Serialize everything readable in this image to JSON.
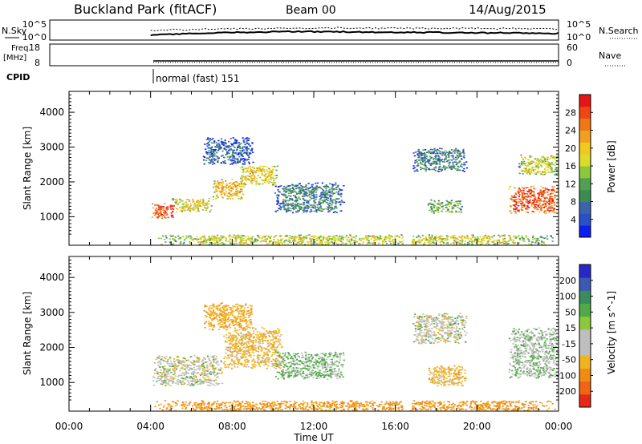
{
  "header": {
    "station": "Buckland Park (fitACF)",
    "beam": "Beam 00",
    "date": "14/Aug/2015"
  },
  "strip": {
    "nsky_label": "N.Sky",
    "nsearch_label": "N.Search",
    "noise_ticks": [
      "10^5",
      "10^0"
    ],
    "freq_label_1": "Freq.",
    "freq_label_2": "[MHz]",
    "freq_ticks": [
      "18",
      "8"
    ],
    "nave_label": "Nave",
    "nave_ticks": [
      "60",
      "0"
    ],
    "cpid_label": "CPID",
    "cpid_value": "normal (fast) 151"
  },
  "time_axis": {
    "label": "Time UT",
    "ticks": [
      "00:00",
      "04:00",
      "08:00",
      "12:00",
      "16:00",
      "20:00",
      "00:00"
    ]
  },
  "colors": {
    "power": [
      "#0a1ef0",
      "#2850c8",
      "#3c64aa",
      "#3c8c50",
      "#50a050",
      "#8cc83c",
      "#dcdc28",
      "#f0c81e",
      "#f0a01e",
      "#f07814",
      "#f04614",
      "#e61414"
    ],
    "velocity": [
      "#2828c8",
      "#3c5ab4",
      "#3c8c5a",
      "#50aa46",
      "#8cc83c",
      "#bebebe",
      "#bebebe",
      "#f0b41e",
      "#f08c14",
      "#f06414",
      "#e62814"
    ]
  },
  "chart_data": [
    {
      "type": "heatmap",
      "parameter": "power",
      "ylabel": "Slant Range [km]",
      "xlabel": "",
      "colorbar_label": "Power [dB]",
      "colorbar_ticks": [
        "4",
        "8",
        "12",
        "16",
        "20",
        "24",
        "28"
      ],
      "x_range_hours": [
        0,
        24
      ],
      "ylim": [
        180,
        4600
      ],
      "yticks": [
        1000,
        2000,
        3000,
        4000
      ],
      "features": [
        {
          "t0": 4.0,
          "t1": 5.2,
          "r0": 950,
          "r1": 1400,
          "db": 26
        },
        {
          "t0": 5.0,
          "t1": 7.0,
          "r0": 1150,
          "r1": 1550,
          "db": 18
        },
        {
          "t0": 7.0,
          "t1": 8.6,
          "r0": 1500,
          "r1": 2100,
          "db": 20
        },
        {
          "t0": 8.3,
          "t1": 10.2,
          "r0": 1900,
          "r1": 2500,
          "db": 18
        },
        {
          "t0": 10.0,
          "t1": 13.5,
          "r0": 1100,
          "r1": 2000,
          "db": 8
        },
        {
          "t0": 6.5,
          "t1": 9.0,
          "r0": 2500,
          "r1": 3300,
          "db": 6
        },
        {
          "t0": 16.8,
          "t1": 19.5,
          "r0": 2300,
          "r1": 3000,
          "db": 8
        },
        {
          "t0": 17.5,
          "t1": 19.3,
          "r0": 1100,
          "r1": 1500,
          "db": 12
        },
        {
          "t0": 21.5,
          "t1": 24.0,
          "r0": 1100,
          "r1": 1900,
          "db": 26
        },
        {
          "t0": 22.0,
          "t1": 24.0,
          "r0": 2200,
          "r1": 2800,
          "db": 16
        },
        {
          "t0": 4.0,
          "t1": 24.0,
          "r0": 200,
          "r1": 500,
          "db": 16
        }
      ]
    },
    {
      "type": "heatmap",
      "parameter": "velocity",
      "ylabel": "Slant Range [km]",
      "xlabel": "Time UT",
      "colorbar_label": "Velocity [m s^-1]",
      "colorbar_ticks": [
        "-200",
        "-100",
        "-50",
        "-15",
        "15",
        "50",
        "100",
        "200"
      ],
      "x_range_hours": [
        0,
        24
      ],
      "ylim": [
        180,
        4600
      ],
      "yticks": [
        1000,
        2000,
        3000,
        4000
      ],
      "features": [
        {
          "t0": 4.0,
          "t1": 7.5,
          "r0": 900,
          "r1": 1800,
          "v": 0
        },
        {
          "t0": 7.5,
          "t1": 10.5,
          "r0": 1400,
          "r1": 2600,
          "v": -30
        },
        {
          "t0": 10.0,
          "t1": 13.5,
          "r0": 1100,
          "r1": 1900,
          "v": 20
        },
        {
          "t0": 6.5,
          "t1": 9.0,
          "r0": 2500,
          "r1": 3300,
          "v": -40
        },
        {
          "t0": 16.8,
          "t1": 19.5,
          "r0": 2100,
          "r1": 3000,
          "v": 0
        },
        {
          "t0": 17.5,
          "t1": 19.5,
          "r0": 900,
          "r1": 1500,
          "v": -30
        },
        {
          "t0": 21.5,
          "t1": 24.0,
          "r0": 1100,
          "r1": 2600,
          "v": 10
        },
        {
          "t0": 4.0,
          "t1": 24.0,
          "r0": 200,
          "r1": 500,
          "v": -60
        }
      ]
    }
  ]
}
